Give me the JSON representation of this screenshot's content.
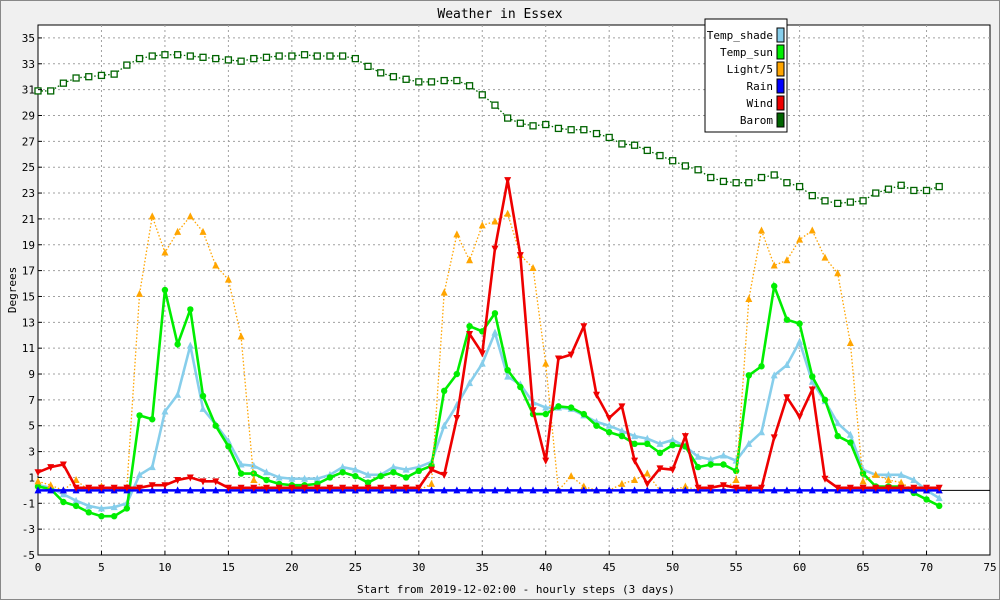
{
  "chart_data": {
    "type": "line",
    "title": "Weather in Essex",
    "xlabel": "Start from 2019-12-02:00 - hourly steps (3 days)",
    "ylabel": "Degrees",
    "xlim": [
      0,
      75
    ],
    "ylim": [
      -5,
      36
    ],
    "xticks": [
      0,
      5,
      10,
      15,
      20,
      25,
      30,
      35,
      40,
      45,
      50,
      55,
      60,
      65,
      70,
      75
    ],
    "yticks": [
      -5,
      -3,
      -1,
      1,
      3,
      5,
      7,
      9,
      11,
      13,
      15,
      17,
      19,
      21,
      23,
      25,
      27,
      29,
      31,
      33,
      35
    ],
    "grid": true,
    "legend_position": "top-right",
    "series": [
      {
        "name": "Temp_shade",
        "color": "#87ceeb",
        "marker": "triangle-up",
        "line": "solid",
        "values": [
          0.4,
          0.2,
          -0.3,
          -0.8,
          -1.2,
          -1.4,
          -1.3,
          -1.0,
          1.2,
          1.8,
          6.1,
          7.4,
          11.2,
          6.3,
          5.1,
          3.8,
          2.0,
          1.9,
          1.4,
          1.0,
          0.9,
          0.9,
          0.9,
          1.2,
          1.8,
          1.6,
          1.2,
          1.2,
          1.8,
          1.6,
          1.8,
          2.2,
          5.0,
          6.6,
          8.3,
          9.8,
          12.2,
          8.8,
          8.2,
          6.8,
          6.4,
          6.4,
          6.3,
          5.8,
          5.3,
          5.0,
          4.6,
          4.2,
          4.0,
          3.6,
          3.9,
          3.4,
          2.6,
          2.4,
          2.7,
          2.3,
          3.6,
          4.5,
          8.9,
          9.7,
          11.5,
          8.4,
          6.9,
          5.2,
          4.3,
          1.6,
          1.2,
          1.2,
          1.2,
          0.8,
          0.0,
          -0.6
        ]
      },
      {
        "name": "Temp_sun",
        "color": "#00ee00",
        "marker": "circle",
        "line": "solid",
        "values": [
          0.3,
          0.1,
          -0.9,
          -1.2,
          -1.7,
          -2.0,
          -2.0,
          -1.4,
          5.8,
          5.5,
          15.5,
          11.3,
          14.0,
          7.3,
          5.0,
          3.4,
          1.3,
          1.3,
          0.8,
          0.5,
          0.4,
          0.4,
          0.5,
          1.0,
          1.4,
          1.1,
          0.6,
          1.1,
          1.4,
          1.0,
          1.5,
          1.9,
          7.7,
          9.0,
          12.7,
          12.3,
          13.7,
          9.3,
          8.0,
          5.9,
          5.9,
          6.5,
          6.4,
          5.9,
          5.0,
          4.5,
          4.2,
          3.6,
          3.6,
          2.9,
          3.5,
          3.4,
          1.8,
          2.0,
          2.0,
          1.5,
          8.9,
          9.6,
          15.8,
          13.2,
          12.9,
          8.8,
          7.0,
          4.2,
          3.7,
          1.3,
          0.3,
          0.3,
          0.3,
          -0.2,
          -0.7,
          -1.2
        ]
      },
      {
        "name": "Light/5",
        "color": "#ffa500",
        "marker": "triangle-up",
        "line": "dotted",
        "values": [
          0.7,
          0.4,
          0.0,
          0.8,
          0.0,
          0.3,
          0.0,
          0.2,
          15.2,
          21.2,
          18.4,
          20.0,
          21.2,
          20.0,
          17.4,
          16.3,
          11.9,
          0.8,
          0.0,
          0.0,
          0.0,
          0.0,
          0.0,
          0.0,
          0.0,
          0.0,
          0.0,
          0.0,
          0.0,
          0.0,
          0.0,
          0.5,
          15.3,
          19.8,
          17.8,
          20.5,
          20.8,
          21.4,
          18.2,
          17.2,
          9.8,
          0.0,
          1.1,
          0.3,
          0.0,
          0.0,
          0.5,
          0.8,
          1.3,
          0.0,
          0.0,
          0.3,
          0.0,
          0.0,
          0.0,
          0.8,
          14.8,
          20.1,
          17.4,
          17.8,
          19.4,
          20.1,
          18.0,
          16.8,
          11.4,
          0.7,
          1.2,
          0.8,
          0.6,
          0.0,
          0.0,
          0.0
        ]
      },
      {
        "name": "Rain",
        "color": "#0000ff",
        "marker": "triangle-up",
        "line": "solid",
        "values": [
          0,
          0,
          0,
          0,
          0,
          0,
          0,
          0,
          0,
          0,
          0,
          0,
          0,
          0,
          0,
          0,
          0,
          0,
          0,
          0,
          0,
          0,
          0,
          0,
          0,
          0,
          0,
          0,
          0,
          0,
          0,
          0,
          0,
          0,
          0,
          0,
          0,
          0,
          0,
          0,
          0,
          0,
          0,
          0,
          0,
          0,
          0,
          0,
          0,
          0,
          0,
          0,
          0,
          0,
          0,
          0,
          0,
          0,
          0,
          0,
          0,
          0,
          0,
          0,
          0,
          0,
          0,
          0,
          0,
          0,
          0,
          0
        ]
      },
      {
        "name": "Wind",
        "color": "#ee0000",
        "marker": "triangle-down",
        "line": "solid",
        "values": [
          1.4,
          1.8,
          2.0,
          0.2,
          0.2,
          0.2,
          0.2,
          0.2,
          0.2,
          0.4,
          0.4,
          0.8,
          1.0,
          0.7,
          0.7,
          0.2,
          0.2,
          0.2,
          0.2,
          0.2,
          0.2,
          0.2,
          0.2,
          0.2,
          0.2,
          0.2,
          0.2,
          0.2,
          0.2,
          0.2,
          0.2,
          1.6,
          1.2,
          5.6,
          12.1,
          10.6,
          18.7,
          24.0,
          18.2,
          6.2,
          2.3,
          10.2,
          10.5,
          12.7,
          7.4,
          5.6,
          6.5,
          2.3,
          0.5,
          1.7,
          1.6,
          4.2,
          0.2,
          0.2,
          0.4,
          0.2,
          0.2,
          0.2,
          4.1,
          7.2,
          5.7,
          7.8,
          0.9,
          0.2,
          0.2,
          0.2,
          0.2,
          0.2,
          0.2,
          0.2,
          0.2,
          0.2
        ]
      },
      {
        "name": "Barom",
        "color": "#006400",
        "marker": "square-open",
        "line": "dotted",
        "values": [
          30.9,
          30.9,
          31.5,
          31.9,
          32.0,
          32.1,
          32.2,
          32.9,
          33.4,
          33.6,
          33.7,
          33.7,
          33.6,
          33.5,
          33.4,
          33.3,
          33.2,
          33.4,
          33.5,
          33.6,
          33.6,
          33.7,
          33.6,
          33.6,
          33.6,
          33.4,
          32.8,
          32.3,
          32.0,
          31.8,
          31.6,
          31.6,
          31.7,
          31.7,
          31.3,
          30.6,
          29.8,
          28.8,
          28.4,
          28.2,
          28.3,
          28.0,
          27.9,
          27.9,
          27.6,
          27.3,
          26.8,
          26.7,
          26.3,
          25.9,
          25.5,
          25.1,
          24.8,
          24.2,
          23.9,
          23.8,
          23.8,
          24.2,
          24.4,
          23.8,
          23.5,
          22.8,
          22.4,
          22.2,
          22.3,
          22.4,
          23.0,
          23.3,
          23.6,
          23.2,
          23.2,
          23.5
        ]
      }
    ]
  }
}
